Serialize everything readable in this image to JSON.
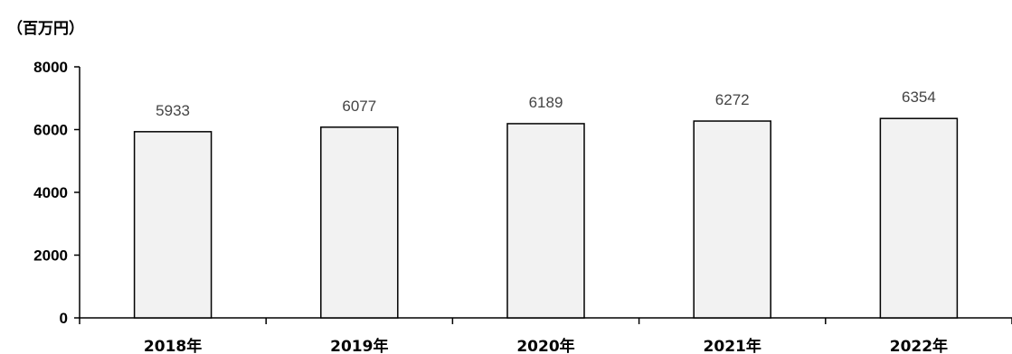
{
  "chart_data": {
    "type": "bar",
    "unit_label": "（百万円）",
    "categories": [
      "2018年",
      "2019年",
      "2020年",
      "2021年",
      "2022年"
    ],
    "values": [
      5933,
      6077,
      6189,
      6272,
      6354
    ],
    "data_labels": [
      "5933",
      "6077",
      "6189",
      "6272",
      "6354"
    ],
    "yticks": [
      "8000",
      "6000",
      "4000",
      "2000",
      "0"
    ],
    "ylim": [
      0,
      8000
    ],
    "grid": false,
    "legend": "none",
    "bar_fill": "#f2f2f2",
    "bar_stroke": "#000000",
    "label_color": "#444444"
  }
}
